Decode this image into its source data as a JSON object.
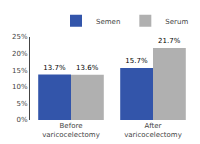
{
  "chart_data": {
    "type": "bar",
    "categories": [
      "Before\nvaricocelectomy",
      "After\nvaricocelectomy"
    ],
    "series": [
      {
        "name": "Semen",
        "color": "#3355aa",
        "values": [
          13.7,
          15.7
        ],
        "value_labels": [
          "13.7%",
          "15.7%"
        ]
      },
      {
        "name": "Serum",
        "color": "#b0b0b0",
        "values": [
          13.6,
          21.7
        ],
        "value_labels": [
          "13.6%",
          "21.7%"
        ]
      }
    ],
    "ylim": [
      0,
      25
    ],
    "yticks": [
      {
        "value": 0,
        "label": "0%"
      },
      {
        "value": 5,
        "label": "5%"
      },
      {
        "value": 10,
        "label": "10%"
      },
      {
        "value": 15,
        "label": "15%"
      },
      {
        "value": 20,
        "label": "20%"
      },
      {
        "value": 25,
        "label": "25%"
      }
    ],
    "data_labels": true,
    "grid": false,
    "legend": "upper right"
  }
}
